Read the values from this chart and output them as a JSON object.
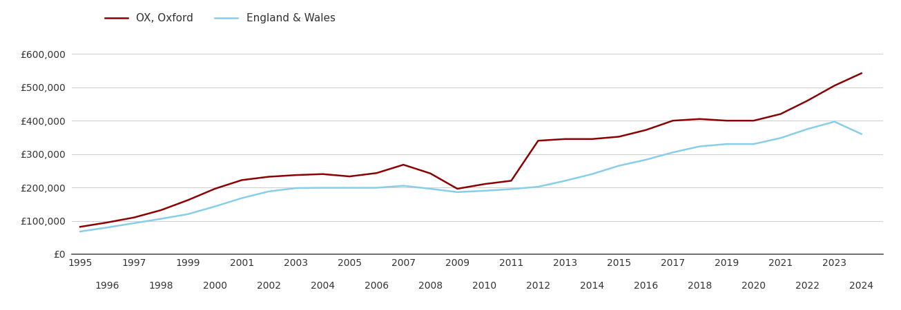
{
  "oxford_years": [
    1995,
    1996,
    1997,
    1998,
    1999,
    2000,
    2001,
    2002,
    2003,
    2004,
    2005,
    2006,
    2007,
    2008,
    2009,
    2010,
    2011,
    2012,
    2013,
    2014,
    2015,
    2016,
    2017,
    2018,
    2019,
    2020,
    2021,
    2022,
    2023,
    2024
  ],
  "oxford_values": [
    82000,
    95000,
    110000,
    132000,
    162000,
    196000,
    222000,
    232000,
    237000,
    240000,
    233000,
    243000,
    268000,
    242000,
    196000,
    210000,
    220000,
    340000,
    345000,
    345000,
    352000,
    372000,
    400000,
    405000,
    400000,
    400000,
    420000,
    460000,
    505000,
    542000
  ],
  "england_years": [
    1995,
    1996,
    1997,
    1998,
    1999,
    2000,
    2001,
    2002,
    2003,
    2004,
    2005,
    2006,
    2007,
    2008,
    2009,
    2010,
    2011,
    2012,
    2013,
    2014,
    2015,
    2016,
    2017,
    2018,
    2019,
    2020,
    2021,
    2022,
    2023,
    2024
  ],
  "england_values": [
    68000,
    80000,
    93000,
    106000,
    120000,
    143000,
    168000,
    188000,
    198000,
    199000,
    199000,
    199000,
    205000,
    196000,
    186000,
    190000,
    195000,
    202000,
    220000,
    240000,
    265000,
    283000,
    305000,
    323000,
    330000,
    330000,
    348000,
    375000,
    397000,
    360000
  ],
  "oxford_color": "#8B0000",
  "england_color": "#87CEEB",
  "oxford_label": "OX, Oxford",
  "england_label": "England & Wales",
  "ylim": [
    0,
    650000
  ],
  "yticks": [
    0,
    100000,
    200000,
    300000,
    400000,
    500000,
    600000
  ],
  "background_color": "#ffffff",
  "grid_color": "#d0d0d0",
  "line_width": 1.8,
  "legend_fontsize": 11,
  "tick_fontsize": 10
}
